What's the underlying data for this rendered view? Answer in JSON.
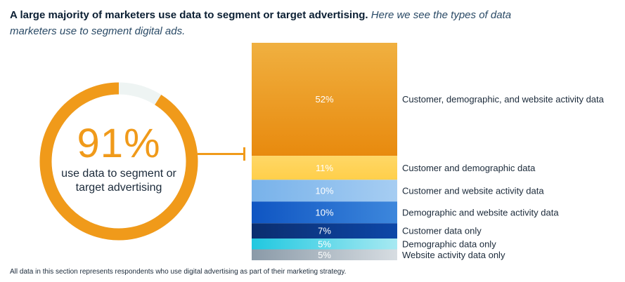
{
  "header": {
    "bold": "A large majority of marketers use data to segment or target advertising.",
    "italic": "Here we see the types of data marketers use to segment digital ads."
  },
  "donut": {
    "value_text": "91%",
    "value": 91,
    "label": "use data to segment or target advertising",
    "colors": {
      "filled": "#f09a1a",
      "track": "#eef4f3"
    }
  },
  "chart_data": {
    "type": "bar",
    "stacked": true,
    "title": "",
    "xlabel": "",
    "ylabel": "",
    "categories": [
      "Customer, demographic, and website activity data",
      "Customer and demographic data",
      "Customer and website activity data",
      "Demographic and website activity data",
      "Customer data only",
      "Demographic data only",
      "Website activity data only"
    ],
    "values": [
      52,
      11,
      10,
      10,
      7,
      5,
      5
    ],
    "labels": [
      "52%",
      "11%",
      "10%",
      "10%",
      "7%",
      "5%",
      "5%"
    ],
    "colors": [
      [
        "#f0b040",
        "#e88a0e"
      ],
      [
        "#ffd766",
        "#ffcf4a"
      ],
      [
        "#78b2ea",
        "#a6cdf2"
      ],
      [
        "#0f55c2",
        "#3d87dc"
      ],
      [
        "#0b2e6f",
        "#0d47a8"
      ],
      [
        "#20c8e0",
        "#a7e9f2"
      ],
      [
        "#8a9aa8",
        "#d7dde2"
      ]
    ]
  },
  "footnote": "All data in this section represents respondents who use digital advertising as part of their marketing strategy."
}
